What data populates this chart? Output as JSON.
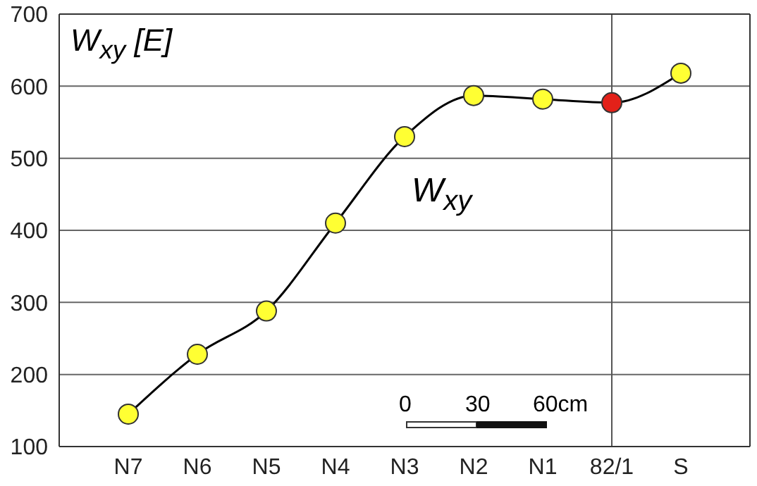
{
  "chart_data": {
    "type": "line",
    "ylabel": "W$_{xy}$ [E]",
    "categories": [
      "N7",
      "N6",
      "N5",
      "N4",
      "N3",
      "N2",
      "N1",
      "82/1",
      "S"
    ],
    "series": [
      {
        "name": "W$_{xy}$",
        "color": "#000000",
        "colors": [
          "#ffff33",
          "#ffff33",
          "#ffff33",
          "#ffff33",
          "#ffff33",
          "#ffff33",
          "#ffff33",
          "#e32119",
          "#ffff33"
        ],
        "values": [
          145,
          228,
          288,
          410,
          530,
          587,
          582,
          577,
          618
        ]
      }
    ],
    "ylim": [
      100,
      700
    ],
    "yticks": [
      100,
      200,
      300,
      400,
      500,
      600,
      700
    ],
    "grid": "y",
    "marker": "circle",
    "line_style": "solid",
    "ref_lines": [
      {
        "axis": "x",
        "value": "82/1",
        "color": "#555555"
      }
    ],
    "annotations": [
      "0",
      "30",
      "60cm"
    ]
  }
}
